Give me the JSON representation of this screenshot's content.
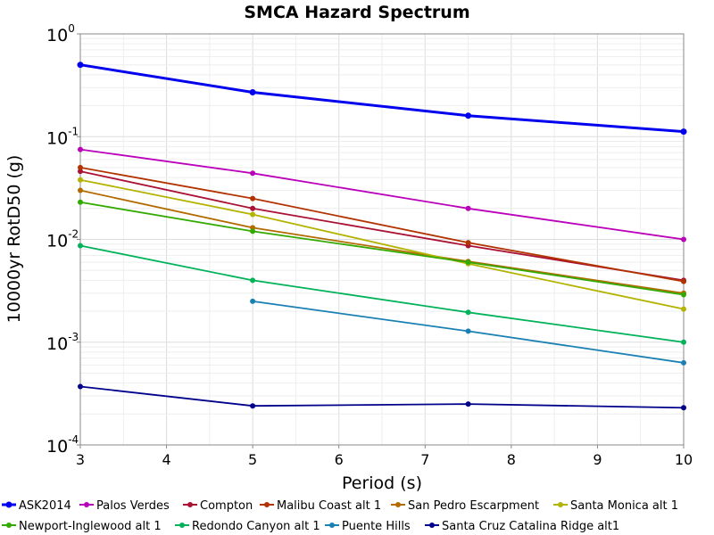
{
  "chart_data": {
    "type": "line",
    "title": "SMCA Hazard Spectrum",
    "xlabel": "Period (s)",
    "ylabel": "10000yr RotD50 (g)",
    "xlim": [
      3,
      10
    ],
    "ylim": [
      0.0001,
      1
    ],
    "yscale": "log",
    "grid": true,
    "legend_position": "bottom",
    "x_ticks": [
      "3",
      "4",
      "5",
      "6",
      "7",
      "8",
      "9",
      "10"
    ],
    "y_ticks": [
      {
        "base": "10",
        "exp": "0"
      },
      {
        "base": "10",
        "exp": "-1"
      },
      {
        "base": "10",
        "exp": "-2"
      },
      {
        "base": "10",
        "exp": "-3"
      },
      {
        "base": "10",
        "exp": "-4"
      }
    ],
    "x": [
      3,
      5,
      7.5,
      10
    ],
    "series": [
      {
        "name": "ASK2014",
        "color": "#0000ee",
        "bold": true,
        "values": [
          0.5,
          0.27,
          0.16,
          0.112
        ]
      },
      {
        "name": "Palos Verdes",
        "color": "#bb00bb",
        "values": [
          0.075,
          0.044,
          0.02,
          0.01
        ]
      },
      {
        "name": "Compton",
        "color": "#aa1133",
        "values": [
          0.046,
          0.02,
          0.0087,
          0.004
        ]
      },
      {
        "name": "Malibu Coast alt 1",
        "color": "#b33300",
        "values": [
          0.05,
          0.025,
          0.0093,
          0.0039
        ]
      },
      {
        "name": "San Pedro Escarpment",
        "color": "#b36b00",
        "values": [
          0.03,
          0.013,
          0.0061,
          0.003
        ]
      },
      {
        "name": "Santa Monica alt 1",
        "color": "#b3b300",
        "values": [
          0.038,
          0.0175,
          0.0058,
          0.0021
        ]
      },
      {
        "name": "Newport-Inglewood alt 1",
        "color": "#33aa00",
        "values": [
          0.023,
          0.012,
          0.006,
          0.0029
        ]
      },
      {
        "name": "Redondo Canyon alt 1",
        "color": "#00b35a",
        "values": [
          0.0087,
          0.004,
          0.00195,
          0.001
        ]
      },
      {
        "name": "Puente Hills",
        "color": "#1a80b3",
        "values": [
          null,
          0.0025,
          0.00128,
          0.00063
        ]
      },
      {
        "name": "Santa Cruz Catalina Ridge alt1",
        "color": "#00008b",
        "values": [
          0.00037,
          0.00024,
          0.00025,
          0.00023
        ]
      }
    ]
  }
}
